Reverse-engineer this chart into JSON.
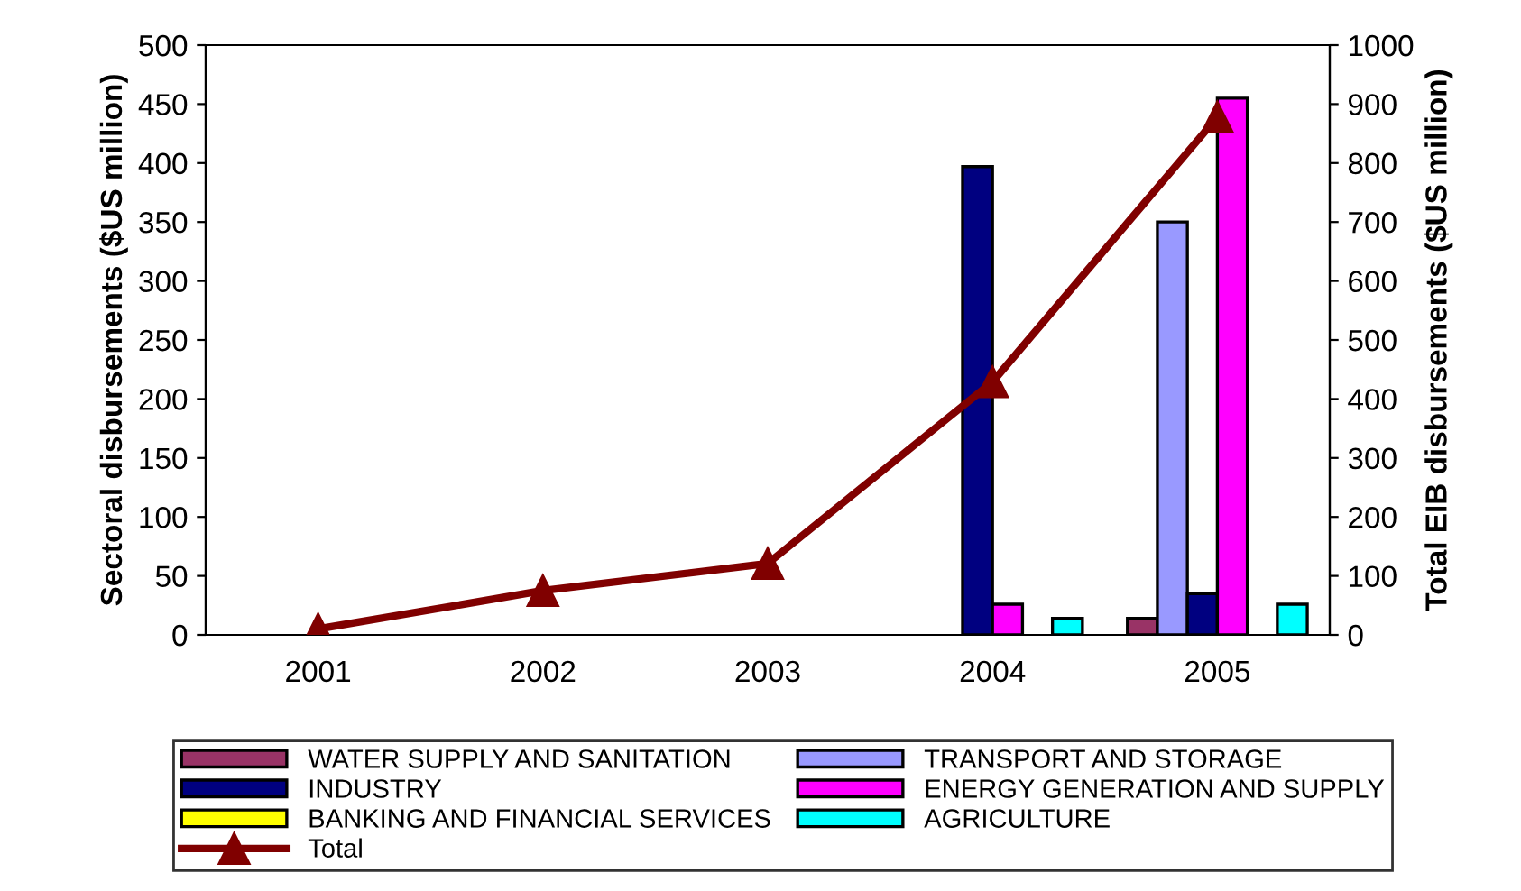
{
  "chart_data": {
    "type": "bar",
    "categories": [
      "2001",
      "2002",
      "2003",
      "2004",
      "2005"
    ],
    "ylabel": "Sectoral disbursements ($US million)",
    "y2label": "Total EIB disbursements ($US million)",
    "ylim": [
      0,
      500
    ],
    "yticks": [
      0,
      50,
      100,
      150,
      200,
      250,
      300,
      350,
      400,
      450,
      500
    ],
    "y2lim": [
      0,
      1000
    ],
    "y2ticks": [
      0,
      100,
      200,
      300,
      400,
      500,
      600,
      700,
      800,
      900,
      1000
    ],
    "grid": false,
    "legend": "bottom",
    "series": [
      {
        "name": "WATER SUPPLY AND SANITATION",
        "color": "#993366",
        "values": [
          null,
          null,
          null,
          null,
          14
        ]
      },
      {
        "name": "TRANSPORT AND STORAGE",
        "color": "#9999ff",
        "values": [
          null,
          null,
          null,
          null,
          350
        ]
      },
      {
        "name": "INDUSTRY",
        "color": "#000080",
        "values": [
          null,
          null,
          null,
          397,
          35
        ]
      },
      {
        "name": "ENERGY GENERATION AND SUPPLY",
        "color": "#ff00ff",
        "values": [
          null,
          null,
          null,
          26,
          455
        ]
      },
      {
        "name": "BANKING AND FINANCIAL SERVICES",
        "color": "#ffff00",
        "values": [
          null,
          null,
          null,
          null,
          null
        ]
      },
      {
        "name": "AGRICULTURE",
        "color": "#00ffff",
        "values": [
          null,
          null,
          null,
          14,
          26
        ]
      },
      {
        "name": "Total",
        "type": "line",
        "axis": "y2",
        "color": "#800000",
        "marker": "triangle",
        "line_style": "solid",
        "values": [
          10,
          75,
          121,
          429,
          878
        ]
      }
    ]
  }
}
